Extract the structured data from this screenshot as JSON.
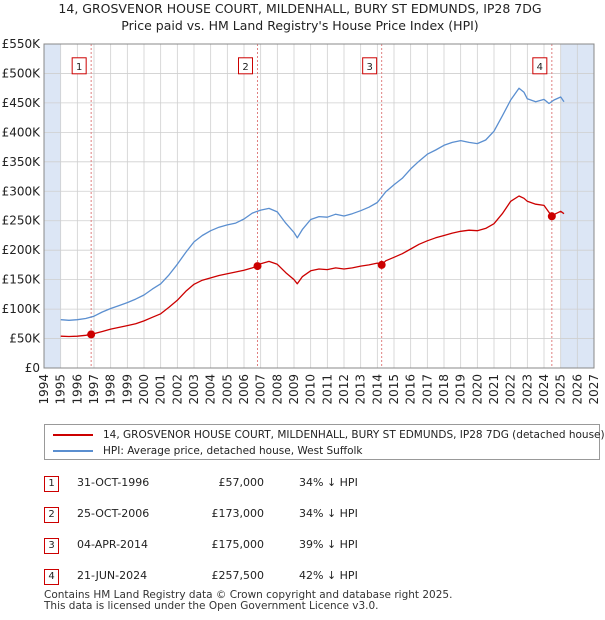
{
  "title_line1": "14, GROSVENOR HOUSE COURT, MILDENHALL, BURY ST EDMUNDS, IP28 7DG",
  "title_line2": "Price paid vs. HM Land Registry's House Price Index (HPI)",
  "colors": {
    "property": "#cc0000",
    "hpi": "#5b8fd0",
    "shade": "#dce6f5",
    "grid": "#cfcfcf",
    "marker_line": "#e08080"
  },
  "legend": {
    "property": "14, GROSVENOR HOUSE COURT, MILDENHALL, BURY ST EDMUNDS, IP28 7DG (detached house)",
    "hpi": "HPI: Average price, detached house, West Suffolk"
  },
  "transactions": [
    {
      "num": "1",
      "date": "31-OCT-1996",
      "price": "£57,000",
      "hpi": "34% ↓ HPI"
    },
    {
      "num": "2",
      "date": "25-OCT-2006",
      "price": "£173,000",
      "hpi": "34% ↓ HPI"
    },
    {
      "num": "3",
      "date": "04-APR-2014",
      "price": "£175,000",
      "hpi": "39% ↓ HPI"
    },
    {
      "num": "4",
      "date": "21-JUN-2024",
      "price": "£257,500",
      "hpi": "42% ↓ HPI"
    }
  ],
  "footer_line1": "Contains HM Land Registry data © Crown copyright and database right 2025.",
  "footer_line2": "This data is licensed under the Open Government Licence v3.0.",
  "chart_data": {
    "type": "line",
    "title": "14, GROSVENOR HOUSE COURT, MILDENHALL, BURY ST EDMUNDS, IP28 7DG — Price paid vs. HM Land Registry's House Price Index (HPI)",
    "xlim": [
      1994,
      2027
    ],
    "ylim": [
      0,
      550000
    ],
    "x_ticks": [
      "1994",
      "1995",
      "1996",
      "1997",
      "1998",
      "1999",
      "2000",
      "2001",
      "2002",
      "2003",
      "2004",
      "2005",
      "2006",
      "2007",
      "2008",
      "2009",
      "2010",
      "2011",
      "2012",
      "2013",
      "2014",
      "2015",
      "2016",
      "2017",
      "2018",
      "2019",
      "2020",
      "2021",
      "2022",
      "2023",
      "2024",
      "2025",
      "2026",
      "2027"
    ],
    "y_ticks": [
      "£0",
      "£50K",
      "£100K",
      "£150K",
      "£200K",
      "£250K",
      "£300K",
      "£350K",
      "£400K",
      "£450K",
      "£500K",
      "£550K"
    ],
    "shaded_ranges": [
      [
        1994,
        1995
      ],
      [
        2025,
        2027
      ]
    ],
    "series": [
      {
        "name": "14, GROSVENOR HOUSE COURT, MILDENHALL, BURY ST EDMUNDS, IP28 7DG (detached house)",
        "x": [
          1995.0,
          1995.5,
          1996.0,
          1996.5,
          1996.83,
          1997.5,
          1998.0,
          1998.5,
          1999.0,
          1999.5,
          2000.0,
          2000.5,
          2001.0,
          2001.5,
          2002.0,
          2002.5,
          2003.0,
          2003.5,
          2004.0,
          2004.5,
          2005.0,
          2005.5,
          2006.0,
          2006.5,
          2006.81,
          2007.0,
          2007.5,
          2008.0,
          2008.5,
          2009.0,
          2009.2,
          2009.5,
          2010.0,
          2010.5,
          2011.0,
          2011.5,
          2012.0,
          2012.5,
          2013.0,
          2013.5,
          2014.0,
          2014.26,
          2014.5,
          2015.0,
          2015.5,
          2016.0,
          2016.5,
          2017.0,
          2017.5,
          2018.0,
          2018.5,
          2019.0,
          2019.5,
          2020.0,
          2020.5,
          2021.0,
          2021.5,
          2022.0,
          2022.5,
          2022.8,
          2023.0,
          2023.5,
          2024.0,
          2024.47,
          2024.7,
          2025.0,
          2025.2
        ],
        "values": [
          54000,
          53500,
          54000,
          55500,
          57000,
          62000,
          66000,
          69000,
          72000,
          75000,
          80000,
          86000,
          92000,
          103000,
          115000,
          130000,
          142000,
          149000,
          153000,
          157000,
          160000,
          163000,
          166000,
          170000,
          173000,
          177000,
          181000,
          176000,
          162000,
          150000,
          143000,
          155000,
          165000,
          168000,
          167000,
          170000,
          168000,
          170000,
          173000,
          175000,
          178000,
          175000,
          182000,
          188000,
          194000,
          202000,
          210000,
          216000,
          221000,
          225000,
          229000,
          232000,
          234000,
          233000,
          237000,
          245000,
          262000,
          283000,
          292000,
          288000,
          283000,
          278000,
          276000,
          257500,
          262000,
          266000,
          262000
        ]
      },
      {
        "name": "HPI: Average price, detached house, West Suffolk",
        "x": [
          1995.0,
          1995.5,
          1996.0,
          1996.5,
          1997.0,
          1997.5,
          1998.0,
          1998.5,
          1999.0,
          1999.5,
          2000.0,
          2000.5,
          2001.0,
          2001.5,
          2002.0,
          2002.5,
          2003.0,
          2003.5,
          2004.0,
          2004.5,
          2005.0,
          2005.5,
          2006.0,
          2006.5,
          2007.0,
          2007.5,
          2008.0,
          2008.5,
          2009.0,
          2009.2,
          2009.5,
          2010.0,
          2010.5,
          2011.0,
          2011.5,
          2012.0,
          2012.5,
          2013.0,
          2013.5,
          2014.0,
          2014.5,
          2015.0,
          2015.5,
          2016.0,
          2016.5,
          2017.0,
          2017.5,
          2018.0,
          2018.5,
          2019.0,
          2019.5,
          2020.0,
          2020.5,
          2021.0,
          2021.5,
          2022.0,
          2022.5,
          2022.8,
          2023.0,
          2023.5,
          2024.0,
          2024.3,
          2024.6,
          2025.0,
          2025.2
        ],
        "values": [
          82000,
          81000,
          82000,
          84000,
          88000,
          95000,
          101000,
          106000,
          111000,
          117000,
          124000,
          134000,
          143000,
          158000,
          176000,
          196000,
          214000,
          225000,
          233000,
          239000,
          243000,
          246000,
          253000,
          263000,
          268000,
          271000,
          265000,
          246000,
          230000,
          221000,
          235000,
          252000,
          257000,
          256000,
          261000,
          258000,
          262000,
          267000,
          273000,
          281000,
          299000,
          311000,
          322000,
          338000,
          351000,
          363000,
          370000,
          378000,
          383000,
          386000,
          383000,
          381000,
          387000,
          402000,
          428000,
          455000,
          475000,
          468000,
          457000,
          452000,
          456000,
          449000,
          455000,
          460000,
          452000
        ]
      }
    ],
    "sales": [
      {
        "label": "1",
        "x": 1996.83,
        "value": 57000
      },
      {
        "label": "2",
        "x": 2006.81,
        "value": 173000
      },
      {
        "label": "3",
        "x": 2014.26,
        "value": 175000
      },
      {
        "label": "4",
        "x": 2024.47,
        "value": 257500
      }
    ]
  }
}
